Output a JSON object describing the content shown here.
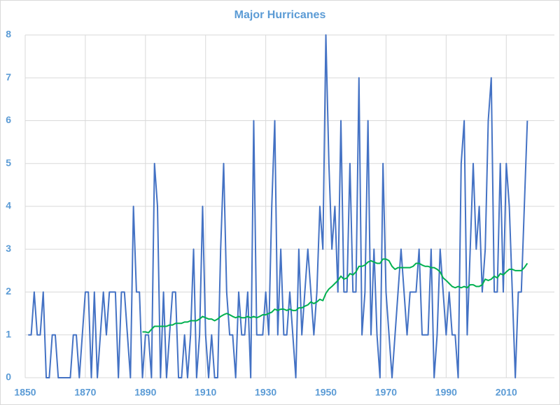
{
  "chart_data": {
    "type": "line",
    "title": "Major Hurricanes",
    "x": [
      1851,
      1852,
      1853,
      1854,
      1855,
      1856,
      1857,
      1858,
      1859,
      1860,
      1861,
      1862,
      1863,
      1864,
      1865,
      1866,
      1867,
      1868,
      1869,
      1870,
      1871,
      1872,
      1873,
      1874,
      1875,
      1876,
      1877,
      1878,
      1879,
      1880,
      1881,
      1882,
      1883,
      1884,
      1885,
      1886,
      1887,
      1888,
      1889,
      1890,
      1891,
      1892,
      1893,
      1894,
      1895,
      1896,
      1897,
      1898,
      1899,
      1900,
      1901,
      1902,
      1903,
      1904,
      1905,
      1906,
      1907,
      1908,
      1909,
      1910,
      1911,
      1912,
      1913,
      1914,
      1915,
      1916,
      1917,
      1918,
      1919,
      1920,
      1921,
      1922,
      1923,
      1924,
      1925,
      1926,
      1927,
      1928,
      1929,
      1930,
      1931,
      1932,
      1933,
      1934,
      1935,
      1936,
      1937,
      1938,
      1939,
      1940,
      1941,
      1942,
      1943,
      1944,
      1945,
      1946,
      1947,
      1948,
      1949,
      1950,
      1951,
      1952,
      1953,
      1954,
      1955,
      1956,
      1957,
      1958,
      1959,
      1960,
      1961,
      1962,
      1963,
      1964,
      1965,
      1966,
      1967,
      1968,
      1969,
      1970,
      1971,
      1972,
      1973,
      1974,
      1975,
      1976,
      1977,
      1978,
      1979,
      1980,
      1981,
      1982,
      1983,
      1984,
      1985,
      1986,
      1987,
      1988,
      1989,
      1990,
      1991,
      1992,
      1993,
      1994,
      1995,
      1996,
      1997,
      1998,
      1999,
      2000,
      2001,
      2002,
      2003,
      2004,
      2005,
      2006,
      2007,
      2008,
      2009,
      2010,
      2011,
      2012,
      2013,
      2014,
      2015,
      2016,
      2017
    ],
    "series": [
      {
        "color": "#4472c4",
        "values": [
          1,
          1,
          2,
          1,
          1,
          2,
          0,
          0,
          1,
          1,
          0,
          0,
          0,
          0,
          0,
          1,
          1,
          0,
          1,
          2,
          2,
          0,
          2,
          0,
          1,
          2,
          1,
          2,
          2,
          2,
          0,
          2,
          2,
          1,
          0,
          4,
          2,
          2,
          0,
          1,
          1,
          0,
          5,
          4,
          0,
          2,
          0,
          1,
          2,
          2,
          0,
          0,
          1,
          0,
          1,
          3,
          0,
          1,
          4,
          1,
          0,
          1,
          0,
          0,
          3,
          5,
          2,
          1,
          1,
          0,
          2,
          1,
          1,
          2,
          0,
          6,
          1,
          1,
          1,
          2,
          1,
          4,
          6,
          1,
          3,
          1,
          1,
          2,
          1,
          0,
          3,
          1,
          2,
          3,
          2,
          1,
          2,
          4,
          3,
          8,
          5,
          3,
          4,
          2,
          6,
          2,
          2,
          5,
          2,
          2,
          7,
          1,
          2,
          6,
          1,
          3,
          1,
          0,
          5,
          2,
          1,
          0,
          1,
          2,
          3,
          2,
          1,
          2,
          2,
          2,
          3,
          1,
          1,
          1,
          3,
          0,
          1,
          3,
          2,
          1,
          2,
          1,
          1,
          0,
          5,
          6,
          1,
          3,
          5,
          3,
          4,
          2,
          3,
          6,
          7,
          2,
          2,
          5,
          2,
          5,
          4,
          2,
          0,
          2,
          2,
          4,
          6
        ]
      },
      {
        "color": "#00b050",
        "values": [
          null,
          null,
          null,
          null,
          null,
          null,
          null,
          null,
          null,
          null,
          null,
          null,
          null,
          null,
          null,
          null,
          null,
          null,
          null,
          null,
          null,
          null,
          null,
          null,
          null,
          null,
          null,
          null,
          null,
          null,
          null,
          null,
          null,
          null,
          null,
          null,
          null,
          null,
          1.07,
          1.07,
          1.05,
          1.13,
          1.2,
          1.2,
          1.2,
          1.2,
          1.2,
          1.23,
          1.23,
          1.27,
          1.27,
          1.27,
          1.3,
          1.3,
          1.33,
          1.33,
          1.33,
          1.37,
          1.43,
          1.4,
          1.37,
          1.37,
          1.33,
          1.37,
          1.43,
          1.47,
          1.5,
          1.47,
          1.43,
          1.4,
          1.43,
          1.4,
          1.4,
          1.43,
          1.4,
          1.43,
          1.4,
          1.43,
          1.47,
          1.47,
          1.5,
          1.53,
          1.6,
          1.57,
          1.6,
          1.6,
          1.57,
          1.6,
          1.57,
          1.57,
          1.63,
          1.63,
          1.67,
          1.7,
          1.77,
          1.73,
          1.77,
          1.83,
          1.8,
          1.97,
          2.07,
          2.13,
          2.2,
          2.27,
          2.37,
          2.3,
          2.33,
          2.43,
          2.4,
          2.47,
          2.6,
          2.6,
          2.63,
          2.7,
          2.73,
          2.7,
          2.67,
          2.67,
          2.77,
          2.77,
          2.73,
          2.6,
          2.53,
          2.57,
          2.57,
          2.57,
          2.57,
          2.57,
          2.6,
          2.67,
          2.67,
          2.63,
          2.6,
          2.6,
          2.57,
          2.57,
          2.53,
          2.47,
          2.33,
          2.27,
          2.2,
          2.13,
          2.1,
          2.13,
          2.1,
          2.13,
          2.1,
          2.17,
          2.17,
          2.13,
          2.13,
          2.17,
          2.3,
          2.27,
          2.3,
          2.37,
          2.33,
          2.43,
          2.4,
          2.47,
          2.53,
          2.53,
          2.5,
          2.5,
          2.5,
          2.57,
          2.67
        ]
      }
    ],
    "xlim": [
      1850,
      2026
    ],
    "xticks": [
      1850,
      1870,
      1890,
      1910,
      1930,
      1950,
      1970,
      1990,
      2010
    ],
    "ylim": [
      0,
      8
    ],
    "yticks": [
      0,
      1,
      2,
      3,
      4,
      5,
      6,
      7,
      8
    ],
    "grid": true
  }
}
